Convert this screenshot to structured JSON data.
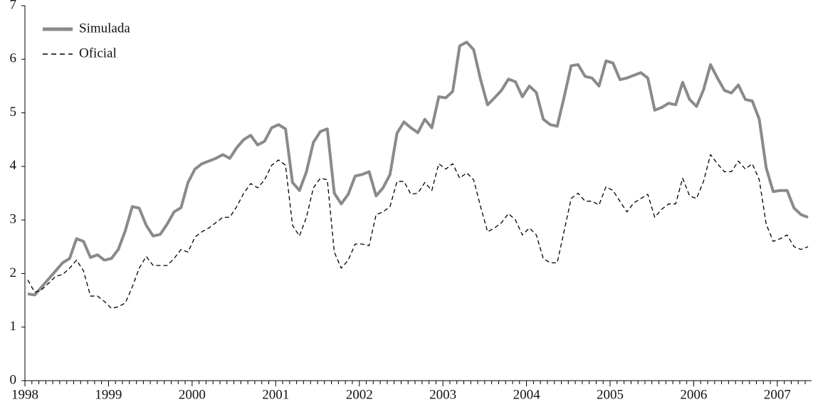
{
  "chart_data": {
    "type": "line",
    "categories": [
      "1998",
      null,
      null,
      null,
      null,
      null,
      null,
      null,
      null,
      null,
      null,
      null,
      "1999",
      null,
      null,
      null,
      null,
      null,
      null,
      null,
      null,
      null,
      null,
      null,
      "2000",
      null,
      null,
      null,
      null,
      null,
      null,
      null,
      null,
      null,
      null,
      null,
      "2001",
      null,
      null,
      null,
      null,
      null,
      null,
      null,
      null,
      null,
      null,
      null,
      "2002",
      null,
      null,
      null,
      null,
      null,
      null,
      null,
      null,
      null,
      null,
      null,
      "2003",
      null,
      null,
      null,
      null,
      null,
      null,
      null,
      null,
      null,
      null,
      null,
      "2004",
      null,
      null,
      null,
      null,
      null,
      null,
      null,
      null,
      null,
      null,
      null,
      "2005",
      null,
      null,
      null,
      null,
      null,
      null,
      null,
      null,
      null,
      null,
      null,
      "2006",
      null,
      null,
      null,
      null,
      null,
      null,
      null,
      null,
      null,
      null,
      null,
      "2007",
      null,
      null,
      null,
      null
    ],
    "series": [
      {
        "name": "Simulada",
        "color": "#8a8a8a",
        "style": "solid",
        "values": [
          1.62,
          1.6,
          1.75,
          1.9,
          2.05,
          2.2,
          2.28,
          2.65,
          2.6,
          2.3,
          2.35,
          2.25,
          2.28,
          2.45,
          2.8,
          3.25,
          3.22,
          2.9,
          2.7,
          2.73,
          2.92,
          3.15,
          3.23,
          3.7,
          3.95,
          4.05,
          4.1,
          4.15,
          4.22,
          4.15,
          4.35,
          4.5,
          4.58,
          4.4,
          4.47,
          4.72,
          4.78,
          4.7,
          3.7,
          3.55,
          3.9,
          4.45,
          4.65,
          4.7,
          3.5,
          3.3,
          3.48,
          3.82,
          3.85,
          3.9,
          3.45,
          3.6,
          3.85,
          4.62,
          4.83,
          4.72,
          4.63,
          4.88,
          4.72,
          5.3,
          5.28,
          5.4,
          6.25,
          6.32,
          6.18,
          5.62,
          5.15,
          5.28,
          5.42,
          5.63,
          5.58,
          5.3,
          5.5,
          5.38,
          4.88,
          4.78,
          4.75,
          5.3,
          5.88,
          5.9,
          5.68,
          5.65,
          5.5,
          5.97,
          5.93,
          5.62,
          5.65,
          5.7,
          5.75,
          5.65,
          5.05,
          5.1,
          5.18,
          5.15,
          5.57,
          5.25,
          5.12,
          5.43,
          5.9,
          5.65,
          5.42,
          5.37,
          5.52,
          5.25,
          5.22,
          4.88,
          3.97,
          3.53,
          3.55,
          3.55,
          3.22,
          3.1,
          3.05
        ]
      },
      {
        "name": "Oficial",
        "color": "#000000",
        "style": "dashed",
        "values": [
          1.88,
          1.65,
          1.7,
          1.82,
          1.95,
          1.98,
          2.1,
          2.25,
          2.05,
          1.58,
          1.58,
          1.48,
          1.35,
          1.38,
          1.45,
          1.75,
          2.1,
          2.32,
          2.15,
          2.15,
          2.15,
          2.28,
          2.45,
          2.4,
          2.68,
          2.78,
          2.85,
          2.95,
          3.05,
          3.05,
          3.25,
          3.5,
          3.68,
          3.6,
          3.75,
          4.02,
          4.12,
          4.02,
          2.9,
          2.7,
          3.05,
          3.6,
          3.78,
          3.75,
          2.4,
          2.1,
          2.25,
          2.55,
          2.55,
          2.52,
          3.1,
          3.15,
          3.25,
          3.72,
          3.72,
          3.48,
          3.5,
          3.7,
          3.55,
          4.05,
          3.95,
          4.05,
          3.78,
          3.88,
          3.75,
          3.25,
          2.78,
          2.85,
          2.95,
          3.12,
          3.0,
          2.72,
          2.85,
          2.72,
          2.28,
          2.2,
          2.2,
          2.8,
          3.4,
          3.5,
          3.35,
          3.35,
          3.28,
          3.62,
          3.55,
          3.35,
          3.15,
          3.32,
          3.4,
          3.48,
          3.05,
          3.2,
          3.3,
          3.3,
          3.78,
          3.45,
          3.4,
          3.72,
          4.22,
          4.05,
          3.9,
          3.9,
          4.1,
          3.95,
          4.05,
          3.75,
          2.92,
          2.6,
          2.65,
          2.72,
          2.5,
          2.45,
          2.5
        ]
      }
    ],
    "ylim": [
      0,
      7
    ],
    "yticks": [
      0,
      1,
      2,
      3,
      4,
      5,
      6,
      7
    ],
    "grid": false,
    "legend": "upper left"
  }
}
